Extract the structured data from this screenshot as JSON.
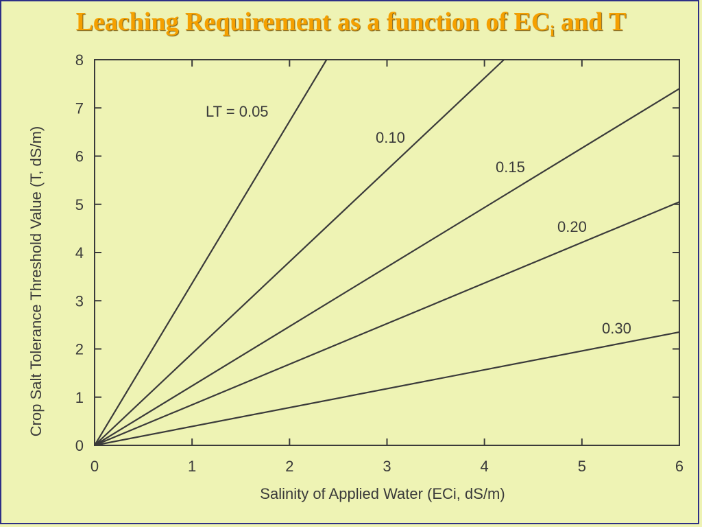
{
  "slide": {
    "title_main": "Leaching Requirement as a function of EC",
    "title_sub": "i",
    "title_end": " and T"
  },
  "colors": {
    "background": "#eef3b4",
    "title": "#f5a000",
    "line": "#3a3a3a",
    "frame": "#2d2f86"
  },
  "chart_data": {
    "type": "line",
    "title": "Leaching Requirement as a function of ECi and T",
    "xlabel": "Salinity of Applied Water (ECi, dS/m)",
    "ylabel": "Crop Salt Tolerance Threshold Value  (T, dS/m)",
    "xlim": [
      0,
      6
    ],
    "ylim": [
      0,
      8
    ],
    "xticks": [
      "0",
      "1",
      "2",
      "3",
      "4",
      "5",
      "6"
    ],
    "yticks": [
      "0",
      "1",
      "2",
      "3",
      "4",
      "5",
      "6",
      "7",
      "8"
    ],
    "grid": false,
    "series": [
      {
        "name": "LT = 0.05",
        "label": "LT  =  0.05",
        "x": [
          0,
          2.38
        ],
        "y": [
          0,
          8
        ]
      },
      {
        "name": "0.10",
        "label": "0.10",
        "x": [
          0,
          4.2
        ],
        "y": [
          0,
          8
        ]
      },
      {
        "name": "0.15",
        "label": "0.15",
        "x": [
          0,
          6
        ],
        "y": [
          0,
          7.4
        ]
      },
      {
        "name": "0.20",
        "label": "0.20",
        "x": [
          0,
          6
        ],
        "y": [
          0,
          5.05
        ]
      },
      {
        "name": "0.30",
        "label": "0.30",
        "x": [
          0,
          6
        ],
        "y": [
          0,
          2.35
        ]
      }
    ]
  }
}
